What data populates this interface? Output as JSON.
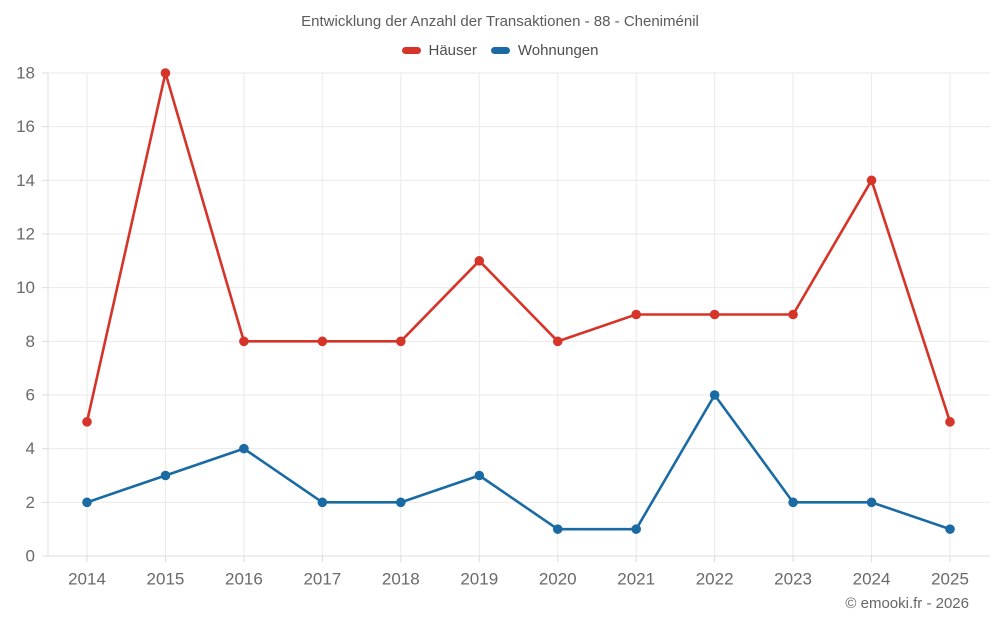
{
  "chart_data": {
    "type": "line",
    "title": "Entwicklung der Anzahl der Transaktionen - 88 - Cheniménil",
    "x": [
      2014,
      2015,
      2016,
      2017,
      2018,
      2019,
      2020,
      2021,
      2022,
      2023,
      2024,
      2025
    ],
    "series": [
      {
        "name": "Häuser",
        "color": "#d63329",
        "values": [
          5,
          18,
          8,
          8,
          8,
          11,
          8,
          9,
          9,
          9,
          14,
          5
        ]
      },
      {
        "name": "Wohnungen",
        "color": "#1a6ba3",
        "values": [
          2,
          3,
          4,
          2,
          2,
          3,
          1,
          1,
          6,
          2,
          2,
          1
        ]
      }
    ],
    "xlabel": "",
    "ylabel": "",
    "ylim": [
      0,
      18
    ],
    "ytick_step": 2,
    "grid": true,
    "legend_position": "top"
  },
  "footer": {
    "attribution": "© emooki.fr - 2026"
  },
  "theme": {
    "grid_color": "#eaeaea",
    "axis_color": "#dcdcdc",
    "tick_label_color": "#6a6a6a",
    "tick_font_size": 17,
    "line_width": 2.6,
    "point_radius": 4.8
  }
}
